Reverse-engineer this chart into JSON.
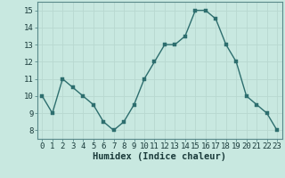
{
  "x": [
    0,
    1,
    2,
    3,
    4,
    5,
    6,
    7,
    8,
    9,
    10,
    11,
    12,
    13,
    14,
    15,
    16,
    17,
    18,
    19,
    20,
    21,
    22,
    23
  ],
  "y": [
    10,
    9,
    11,
    10.5,
    10,
    9.5,
    8.5,
    8,
    8.5,
    9.5,
    11,
    12,
    13,
    13,
    13.5,
    15,
    15,
    14.5,
    13,
    12,
    10,
    9.5,
    9,
    8
  ],
  "xlabel": "Humidex (Indice chaleur)",
  "ylim": [
    7.5,
    15.5
  ],
  "xlim": [
    -0.5,
    23.5
  ],
  "yticks": [
    8,
    9,
    10,
    11,
    12,
    13,
    14,
    15
  ],
  "xticks": [
    0,
    1,
    2,
    3,
    4,
    5,
    6,
    7,
    8,
    9,
    10,
    11,
    12,
    13,
    14,
    15,
    16,
    17,
    18,
    19,
    20,
    21,
    22,
    23
  ],
  "line_color": "#2d6e6e",
  "marker_color": "#2d6e6e",
  "bg_color": "#c8e8e0",
  "grid_color": "#b8d8d0",
  "tick_label_fontsize": 6.5,
  "xlabel_fontsize": 7.5,
  "line_width": 1.0,
  "marker_size": 2.5
}
